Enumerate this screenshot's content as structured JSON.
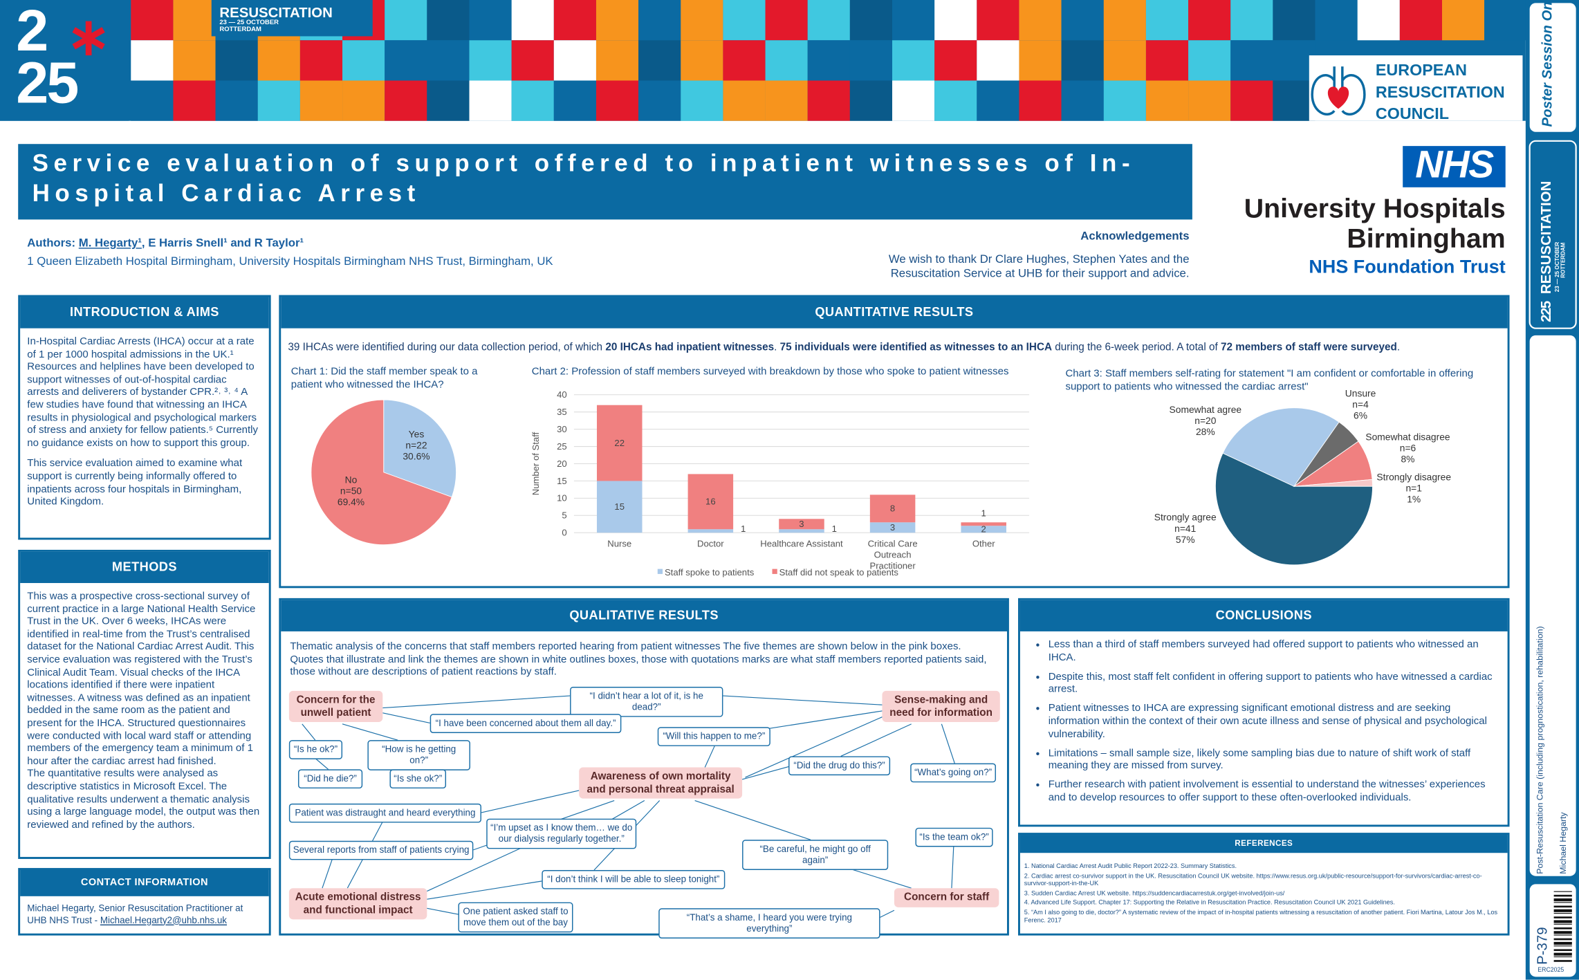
{
  "header": {
    "logo_top": "2",
    "logo_bottom": "25",
    "conference": "RESUSCITATION",
    "dates": "23 — 25 OCTOBER",
    "city": "ROTTERDAM",
    "council": [
      "EUROPEAN",
      "RESUSCITATION",
      "COUNCIL"
    ]
  },
  "title": "Service evaluation of support offered to inpatient witnesses of In-Hospital Cardiac Arrest",
  "authors": {
    "label": "Authors:",
    "lead": "M. Hegarty¹",
    "rest": ", E Harris Snell¹ and R Taylor¹"
  },
  "affiliation": "1 Queen Elizabeth Hospital Birmingham, University Hospitals Birmingham NHS Trust, Birmingham, UK",
  "acknowledgements": {
    "heading": "Acknowledgements",
    "text": "We wish to thank Dr Clare Hughes, Stephen Yates and the Resuscitation Service at UHB for their support and advice."
  },
  "nhs": {
    "logo": "NHS",
    "lines": [
      "University Hospitals",
      "Birmingham"
    ],
    "trust": "NHS Foundation Trust"
  },
  "intro": {
    "heading": "INTRODUCTION & AIMS",
    "paragraphs": [
      "In-Hospital Cardiac Arrests (IHCA) occur at a rate of 1 per 1000 hospital admissions in the UK.¹ Resources and helplines have been developed to support witnesses of out-of-hospital cardiac arrests and deliverers of bystander CPR.²˒ ³˒ ⁴ A few studies have found that witnessing an IHCA results in physiological and psychological markers of stress and anxiety for fellow patients.⁵ Currently no guidance exists on how to support this group.",
      "This service evaluation aimed to examine what support is currently being informally offered to inpatients across four hospitals in Birmingham, United Kingdom."
    ]
  },
  "methods": {
    "heading": "METHODS",
    "paragraphs": [
      "This was a prospective cross-sectional survey of current practice in a large National Health Service Trust in the UK. Over 6 weeks, IHCAs were identified in real-time from the Trust’s centralised dataset for the National Cardiac Arrest Audit. This service evaluation was registered with the Trust’s Clinical Audit Team. Visual checks of the IHCA locations identified if there were inpatient witnesses. A witness was defined as an inpatient bedded in the same room as the patient and present for the IHCA. Structured questionnaires were conducted with local ward staff or attending members of the emergency team a minimum of 1 hour after the cardiac arrest had finished.",
      "The quantitative results were analysed as descriptive statistics in Microsoft Excel. The qualitative results underwent a thematic analysis using a large language model, the output was then reviewed and refined by the authors."
    ]
  },
  "contact": {
    "heading": "CONTACT INFORMATION",
    "text": "Michael Hegarty, Senior Resuscitation Practitioner at UHB NHS Trust - ",
    "email": "Michael.Hegarty2@uhb.nhs.uk"
  },
  "quantitative": {
    "heading": "QUANTITATIVE RESULTS",
    "summary": [
      {
        "text": "39 IHCAs were identified during our data collection period, of which ",
        "bold": false
      },
      {
        "text": "20 IHCAs had inpatient witnesses",
        "bold": true
      },
      {
        "text": ". ",
        "bold": false
      },
      {
        "text": "75 individuals were identified as witnesses to an IHCA",
        "bold": true
      },
      {
        "text": " during the 6-week period. A total of ",
        "bold": false
      },
      {
        "text": "72 members of staff were surveyed",
        "bold": true
      },
      {
        "text": ".",
        "bold": false
      }
    ]
  },
  "chart_data": [
    {
      "type": "pie",
      "title": "Chart 1: Did the staff member speak to a patient who witnessed the IHCA?",
      "categories": [
        "Yes",
        "No"
      ],
      "values": [
        22,
        50
      ],
      "value_labels": [
        "n=22",
        "n=50"
      ],
      "percent_labels": [
        "30.6%",
        "69.4%"
      ],
      "colors": [
        "#a9c9ea",
        "#f08080"
      ]
    },
    {
      "type": "bar",
      "stacked": true,
      "title": "Chart 2: Profession of staff members surveyed with breakdown by those who spoke to patient witnesses",
      "y_label": "Number of Staff",
      "categories": [
        "Nurse",
        "Doctor",
        "Healthcare Assistant",
        "Critical Care Outreach Practitioner",
        "Other"
      ],
      "series": [
        {
          "name": "Staff spoke to patients",
          "color": "#a9c9ea",
          "values": [
            15,
            1,
            1,
            3,
            2
          ]
        },
        {
          "name": "Staff did not speak to patients",
          "color": "#f08080",
          "values": [
            22,
            16,
            3,
            8,
            1
          ]
        }
      ],
      "ylim": [
        0,
        40
      ],
      "yticks": [
        0,
        5,
        10,
        15,
        20,
        25,
        30,
        35,
        40
      ],
      "grid": true,
      "legend": "bottom"
    },
    {
      "type": "pie",
      "title": "Chart 3: Staff members self-rating for statement \"I am confident or comfortable in offering support to patients who witnessed the cardiac arrest\"",
      "categories": [
        "Strongly agree",
        "Somewhat agree",
        "Unsure",
        "Somewhat disagree",
        "Strongly disagree"
      ],
      "values": [
        41,
        20,
        4,
        6,
        1
      ],
      "value_labels": [
        "n=41",
        "n=20",
        "n=4",
        "n=6",
        "n=1"
      ],
      "percent_labels": [
        "57%",
        "28%",
        "6%",
        "8%",
        "1%"
      ],
      "colors": [
        "#1f5f80",
        "#a9c9ea",
        "#6b6b6b",
        "#f08080",
        "#f6c8c8"
      ]
    }
  ],
  "qualitative": {
    "heading": "QUALITATIVE RESULTS",
    "text": "Thematic analysis of the concerns that staff members reported hearing from patient witnesses The five themes are shown below in the pink boxes. Quotes that illustrate and link the themes are shown in white outlines boxes, those with quotations marks are what staff members reported patients said, those without are descriptions of patient reactions by staff.",
    "themes": [
      "Concern for the unwell patient",
      "Sense-making and need for information",
      "Awareness of own mortality and personal threat appraisal",
      "Acute emotional distress and functional impact",
      "Concern for staff"
    ],
    "quotes": [
      "“I didn’t hear a lot of it, is he dead?”",
      "“I have been concerned about them all day.”",
      "“Is he ok?”",
      "“How is he getting on?”",
      "“Did he die?”",
      "“Is she ok?”",
      "“Will this happen to me?”",
      "“Did the drug do this?”",
      "“What’s going on?”",
      "Patient was distraught and heard everything",
      "“I’m upset as I know them… we do our dialysis regularly together.”",
      "Several reports from staff of patients crying",
      "“Be careful, he might go off again”",
      "“Is the team ok?”",
      "“I don’t think I will be able to sleep tonight”",
      "One patient asked staff to move them out of the bay",
      "“That’s a shame, I heard you were trying everything”"
    ]
  },
  "conclusions": {
    "heading": "CONCLUSIONS",
    "bullets": [
      "Less than a third of staff members surveyed had offered support to patients who witnessed an IHCA.",
      "Despite this, most staff felt confident in offering support to patients who have witnessed a cardiac arrest.",
      "Patient witnesses to IHCA are expressing significant emotional distress and are seeking information within the context of their own acute illness and sense of physical and psychological vulnerability.",
      "Limitations – small sample size, likely some sampling bias due to nature of shift work of staff meaning they are missed from survey.",
      "Further research with patient involvement is essential to understand the witnesses’ experiences and to develop resources to offer support to these often-overlooked individuals."
    ]
  },
  "references": {
    "heading": "REFERENCES",
    "items": [
      "1. National Cardiac Arrest Audit Public Report 2022-23. Summary Statistics.",
      "2. Cardiac arrest co-survivor support in the UK. Resuscitation Council UK website. https://www.resus.org.uk/public-resource/support-for-survivors/cardiac-arrest-co-survivor-support-in-the-UK",
      "3. Sudden Cardiac Arrest UK website. https://suddencardiacarrestuk.org/get-involved/join-us/",
      "4. Advanced Life Support. Chapter 17: Supporting the Relative in Resuscitation Practice. Resuscitation Council UK 2021 Guidelines.",
      "5. “Am I also going to die, doctor?” A systematic review of the impact of in-hospital patients witnessing a resuscitation of another patient. Fiori Martina, Latour Jos M., Los Ferenc. 2017"
    ]
  },
  "sidebar": {
    "brand": "Poster Session Online",
    "category": "Post-Resuscitation Care (including prognostication, rehabilitation)",
    "author": "Michael Hegarty",
    "poster_id": "P-379",
    "event": "ERC2025"
  }
}
